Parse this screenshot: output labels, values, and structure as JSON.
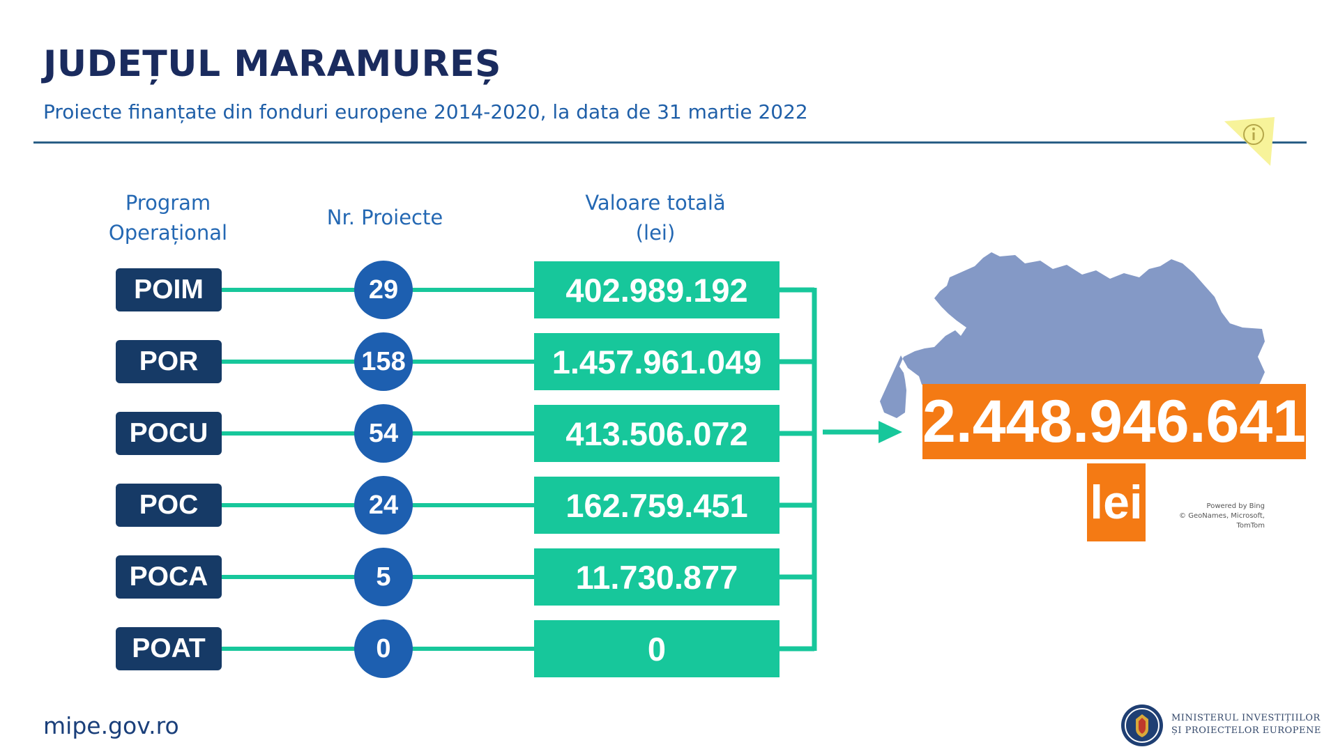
{
  "header": {
    "title": "JUDEȚUL MARAMUREȘ",
    "subtitle": "Proiecte finanțate din fonduri europene 2014-2020, la data de 31 martie 2022"
  },
  "columns": {
    "program": [
      "Program",
      "Operațional"
    ],
    "count": "Nr. Proiecte",
    "value": [
      "Valoare totală",
      "(lei)"
    ]
  },
  "chart_data": {
    "type": "table",
    "rows": [
      {
        "program": "POIM",
        "projects": "29",
        "value": "402.989.192"
      },
      {
        "program": "POR",
        "projects": "158",
        "value": "1.457.961.049"
      },
      {
        "program": "POCU",
        "projects": "54",
        "value": "413.506.072"
      },
      {
        "program": "POC",
        "projects": "24",
        "value": "162.759.451"
      },
      {
        "program": "POCA",
        "projects": "5",
        "value": "11.730.877"
      },
      {
        "program": "POAT",
        "projects": "0",
        "value": "0"
      }
    ],
    "total": {
      "value": "2.448.946.641",
      "unit": "lei"
    }
  },
  "map": {
    "credit_line1": "Powered by Bing",
    "credit_line2": "© GeoNames, Microsoft, TomTom"
  },
  "footer": {
    "url": "mipe.gov.ro",
    "ministry_line1": "MINISTERUL INVESTIȚIILOR",
    "ministry_line2": "ȘI PROIECTELOR EUROPENE"
  },
  "colors": {
    "navy": "#163a66",
    "blue": "#1d5fb0",
    "teal": "#17c79b",
    "orange": "#f47a14",
    "map": "#8499c6"
  },
  "icons": {
    "info": "info-icon",
    "map": "county-map-shape",
    "logo": "coat-of-arms-icon"
  }
}
